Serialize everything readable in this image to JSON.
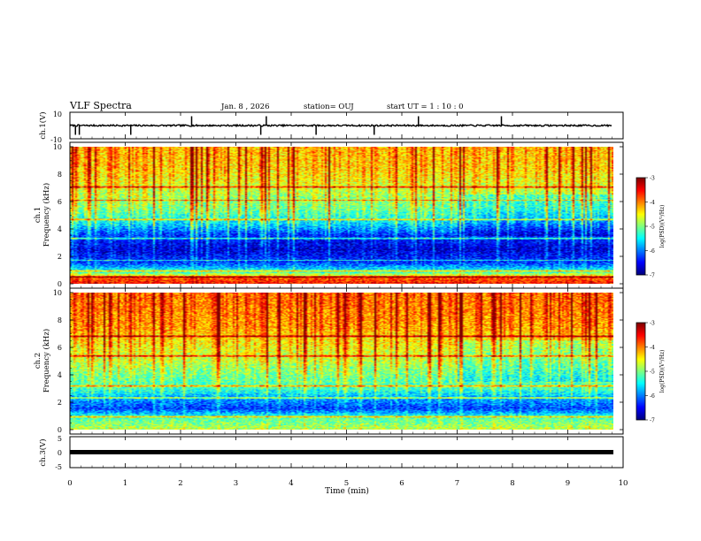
{
  "header": {
    "title": "VLF Spectra",
    "date": "Jan. 8 , 2026",
    "station": "station= OUJ",
    "start": "start  UT =  1 : 10 : 0"
  },
  "chart_data": [
    {
      "type": "line",
      "name": "ch1-waveform",
      "ylabel": "ch.1(V)",
      "ylim": [
        -10,
        10
      ],
      "yticks": [
        "10",
        "-10"
      ],
      "xlim": [
        0,
        10
      ],
      "baseline_V": 0,
      "noise_V": 1.2,
      "spikes_min": [
        0.1,
        0.17,
        1.1,
        2.2,
        3.45,
        3.55,
        4.45,
        5.5,
        6.3,
        7.8
      ]
    },
    {
      "type": "heatmap",
      "name": "ch1-spectrogram",
      "ylabel": "ch.1\nFrequency (kHz)",
      "ylim": [
        0,
        10
      ],
      "yticks": [
        "0",
        "2",
        "4",
        "6",
        "8",
        "10"
      ],
      "xlim": [
        0,
        9.8
      ],
      "colorbar": {
        "label": "log(PSD)(V²/Hz)",
        "range": [
          -7,
          -3
        ],
        "ticks": [
          "-3",
          "-4",
          "-5",
          "-6",
          "-7"
        ]
      },
      "profile_log_psd": [
        [
          0.0,
          -3.6
        ],
        [
          0.4,
          -3.9
        ],
        [
          0.8,
          -5.3
        ],
        [
          1.5,
          -6.3
        ],
        [
          2.5,
          -6.7
        ],
        [
          3.5,
          -6.4
        ],
        [
          4.5,
          -5.6
        ],
        [
          5.5,
          -5.1
        ],
        [
          6.5,
          -4.9
        ],
        [
          7.5,
          -4.6
        ],
        [
          8.5,
          -4.4
        ],
        [
          10.0,
          -4.3
        ]
      ],
      "bright_bands_khz": [
        0.5,
        0.9,
        1.7,
        3.3,
        4.7,
        6.1,
        7.1
      ],
      "shift_after_min": 7.0,
      "noise_seed": 11
    },
    {
      "type": "heatmap",
      "name": "ch2-spectrogram",
      "ylabel": "ch.2\nFrequency (kHz)",
      "ylim": [
        0,
        10
      ],
      "yticks": [
        "0",
        "2",
        "4",
        "6",
        "8",
        "10"
      ],
      "xlim": [
        0,
        9.8
      ],
      "colorbar": {
        "label": "log(PSD)(V²/Hz)",
        "range": [
          -7,
          -3
        ],
        "ticks": [
          "-3",
          "-4",
          "-5",
          "-6",
          "-7"
        ]
      },
      "profile_log_psd": [
        [
          0.0,
          -4.8
        ],
        [
          0.8,
          -5.2
        ],
        [
          1.5,
          -6.3
        ],
        [
          2.3,
          -5.9
        ],
        [
          3.0,
          -5.3
        ],
        [
          4.0,
          -5.1
        ],
        [
          5.0,
          -4.8
        ],
        [
          6.5,
          -4.5
        ],
        [
          7.5,
          -4.2
        ],
        [
          8.5,
          -4.1
        ],
        [
          10.0,
          -4.0
        ]
      ],
      "bright_bands_khz": [
        0.9,
        2.3,
        3.2,
        5.4,
        6.8
      ],
      "shift_after_min": 7.0,
      "noise_seed": 29
    },
    {
      "type": "line",
      "name": "ch3-waveform",
      "ylabel": "ch.3(V)",
      "ylim": [
        -5,
        5
      ],
      "yticks": [
        "5",
        "0",
        "-5"
      ],
      "xlim": [
        0,
        9.8
      ],
      "constant_V": -0.6
    }
  ],
  "x_axis": {
    "label": "Time (min)",
    "ticks": [
      "0",
      "1",
      "2",
      "3",
      "4",
      "5",
      "6",
      "7",
      "8",
      "9",
      "10"
    ]
  }
}
